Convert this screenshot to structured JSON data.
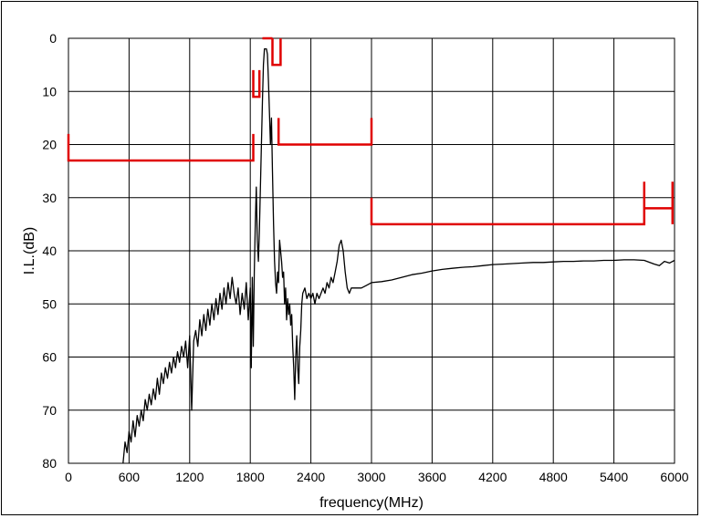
{
  "chart_data": {
    "type": "line",
    "title": "",
    "xlabel": "frequency(MHz)",
    "ylabel": "I.L.(dB)",
    "xlim": [
      0,
      6000
    ],
    "ylim": [
      0,
      80
    ],
    "y_inverted": true,
    "grid": true,
    "legend": "none",
    "x_ticks": [
      "0",
      "600",
      "1200",
      "1800",
      "2400",
      "3000",
      "3600",
      "4200",
      "4800",
      "5400",
      "6000"
    ],
    "y_ticks": [
      "0",
      "10",
      "20",
      "30",
      "40",
      "50",
      "60",
      "70",
      "80"
    ],
    "colors": {
      "response": "#000000",
      "spec_mask": "#e00000"
    },
    "series": [
      {
        "color": "#000000",
        "points": [
          [
            540,
            80
          ],
          [
            560,
            76
          ],
          [
            580,
            78
          ],
          [
            600,
            74
          ],
          [
            620,
            76
          ],
          [
            640,
            72
          ],
          [
            660,
            75
          ],
          [
            680,
            71
          ],
          [
            700,
            73
          ],
          [
            720,
            70
          ],
          [
            740,
            72
          ],
          [
            760,
            68
          ],
          [
            780,
            70
          ],
          [
            800,
            67
          ],
          [
            820,
            69
          ],
          [
            840,
            66
          ],
          [
            860,
            68
          ],
          [
            880,
            64
          ],
          [
            900,
            67
          ],
          [
            920,
            63
          ],
          [
            940,
            65
          ],
          [
            960,
            62
          ],
          [
            980,
            64
          ],
          [
            1000,
            61
          ],
          [
            1020,
            63
          ],
          [
            1040,
            60
          ],
          [
            1060,
            62
          ],
          [
            1080,
            59
          ],
          [
            1100,
            61
          ],
          [
            1120,
            58
          ],
          [
            1140,
            60
          ],
          [
            1160,
            57
          ],
          [
            1180,
            62
          ],
          [
            1200,
            56
          ],
          [
            1220,
            70
          ],
          [
            1240,
            57
          ],
          [
            1260,
            55
          ],
          [
            1280,
            58
          ],
          [
            1300,
            53
          ],
          [
            1320,
            56
          ],
          [
            1340,
            52
          ],
          [
            1360,
            55
          ],
          [
            1380,
            51
          ],
          [
            1400,
            54
          ],
          [
            1420,
            50
          ],
          [
            1440,
            53
          ],
          [
            1460,
            49
          ],
          [
            1480,
            52
          ],
          [
            1500,
            48
          ],
          [
            1520,
            51
          ],
          [
            1540,
            47
          ],
          [
            1560,
            50
          ],
          [
            1580,
            46
          ],
          [
            1600,
            49
          ],
          [
            1620,
            45
          ],
          [
            1640,
            48
          ],
          [
            1660,
            50
          ],
          [
            1680,
            47
          ],
          [
            1700,
            52
          ],
          [
            1720,
            48
          ],
          [
            1740,
            51
          ],
          [
            1760,
            46
          ],
          [
            1780,
            53
          ],
          [
            1800,
            47
          ],
          [
            1810,
            62
          ],
          [
            1820,
            45
          ],
          [
            1830,
            58
          ],
          [
            1840,
            44
          ],
          [
            1850,
            35
          ],
          [
            1860,
            28
          ],
          [
            1870,
            38
          ],
          [
            1880,
            42
          ],
          [
            1890,
            36
          ],
          [
            1900,
            28
          ],
          [
            1910,
            20
          ],
          [
            1920,
            12
          ],
          [
            1930,
            5
          ],
          [
            1940,
            2
          ],
          [
            1960,
            2
          ],
          [
            1970,
            3
          ],
          [
            1980,
            8
          ],
          [
            1990,
            14
          ],
          [
            2000,
            20
          ],
          [
            2010,
            15
          ],
          [
            2020,
            25
          ],
          [
            2030,
            35
          ],
          [
            2040,
            42
          ],
          [
            2050,
            46
          ],
          [
            2060,
            48
          ],
          [
            2070,
            44
          ],
          [
            2080,
            46
          ],
          [
            2090,
            38
          ],
          [
            2100,
            40
          ],
          [
            2110,
            42
          ],
          [
            2120,
            45
          ],
          [
            2130,
            44
          ],
          [
            2140,
            50
          ],
          [
            2150,
            47
          ],
          [
            2160,
            53
          ],
          [
            2170,
            49
          ],
          [
            2180,
            52
          ],
          [
            2190,
            50
          ],
          [
            2200,
            54
          ],
          [
            2210,
            52
          ],
          [
            2220,
            58
          ],
          [
            2230,
            62
          ],
          [
            2240,
            68
          ],
          [
            2250,
            60
          ],
          [
            2260,
            56
          ],
          [
            2270,
            62
          ],
          [
            2280,
            65
          ],
          [
            2290,
            58
          ],
          [
            2300,
            55
          ],
          [
            2310,
            50
          ],
          [
            2320,
            48
          ],
          [
            2340,
            47
          ],
          [
            2360,
            49
          ],
          [
            2380,
            48
          ],
          [
            2400,
            49
          ],
          [
            2420,
            48
          ],
          [
            2440,
            50
          ],
          [
            2460,
            48
          ],
          [
            2480,
            49
          ],
          [
            2500,
            48
          ],
          [
            2520,
            47
          ],
          [
            2540,
            48
          ],
          [
            2560,
            46
          ],
          [
            2580,
            47
          ],
          [
            2600,
            45
          ],
          [
            2620,
            46
          ],
          [
            2640,
            44
          ],
          [
            2660,
            42
          ],
          [
            2680,
            39
          ],
          [
            2700,
            38
          ],
          [
            2720,
            40
          ],
          [
            2740,
            44
          ],
          [
            2760,
            47
          ],
          [
            2780,
            48
          ],
          [
            2800,
            47
          ],
          [
            2850,
            47
          ],
          [
            2900,
            47
          ],
          [
            2950,
            46.5
          ],
          [
            3000,
            46
          ],
          [
            3100,
            45.8
          ],
          [
            3200,
            45.5
          ],
          [
            3300,
            45
          ],
          [
            3400,
            44.5
          ],
          [
            3500,
            44.2
          ],
          [
            3600,
            43.8
          ],
          [
            3700,
            43.5
          ],
          [
            3800,
            43.3
          ],
          [
            3900,
            43.1
          ],
          [
            4000,
            43
          ],
          [
            4100,
            42.8
          ],
          [
            4200,
            42.6
          ],
          [
            4300,
            42.5
          ],
          [
            4400,
            42.4
          ],
          [
            4500,
            42.3
          ],
          [
            4600,
            42.2
          ],
          [
            4700,
            42.2
          ],
          [
            4800,
            42.1
          ],
          [
            4900,
            42
          ],
          [
            5000,
            42
          ],
          [
            5100,
            41.9
          ],
          [
            5200,
            41.9
          ],
          [
            5300,
            41.8
          ],
          [
            5400,
            41.8
          ],
          [
            5500,
            41.7
          ],
          [
            5600,
            41.7
          ],
          [
            5700,
            41.8
          ],
          [
            5800,
            42.5
          ],
          [
            5850,
            42.8
          ],
          [
            5900,
            42
          ],
          [
            5950,
            42.3
          ],
          [
            6000,
            41.8
          ]
        ]
      },
      {
        "color": "#e00000",
        "segments": [
          [
            [
              0,
              18
            ],
            [
              0,
              23
            ],
            [
              1830,
              23
            ],
            [
              1830,
              18
            ]
          ],
          [
            [
              1830,
              11
            ],
            [
              1830,
              6
            ],
            [
              1830,
              11
            ],
            [
              1890,
              11
            ],
            [
              1890,
              6
            ]
          ],
          [
            [
              1920,
              0
            ],
            [
              2020,
              0
            ]
          ],
          [
            [
              2020,
              0
            ],
            [
              2020,
              5
            ],
            [
              2100,
              5
            ],
            [
              2100,
              0
            ]
          ],
          [
            [
              2080,
              15
            ],
            [
              2080,
              20
            ],
            [
              3000,
              20
            ],
            [
              3000,
              15
            ]
          ],
          [
            [
              3000,
              30
            ],
            [
              3000,
              35
            ],
            [
              5700,
              35
            ],
            [
              5700,
              27
            ],
            [
              5700,
              32
            ],
            [
              5980,
              32
            ],
            [
              5980,
              27
            ],
            [
              5980,
              35
            ]
          ]
        ]
      }
    ]
  }
}
